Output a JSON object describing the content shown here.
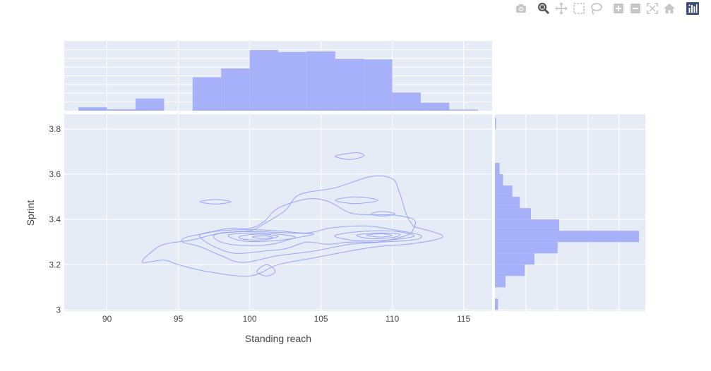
{
  "toolbar": {
    "buttons": [
      {
        "name": "camera-icon",
        "title": "Download plot as a png"
      },
      {
        "name": "zoom-icon",
        "title": "Zoom"
      },
      {
        "name": "pan-icon",
        "title": "Pan"
      },
      {
        "name": "box-select-icon",
        "title": "Box Select"
      },
      {
        "name": "lasso-select-icon",
        "title": "Lasso Select"
      },
      {
        "name": "zoom-in-icon",
        "title": "Zoom in"
      },
      {
        "name": "zoom-out-icon",
        "title": "Zoom out"
      },
      {
        "name": "autoscale-icon",
        "title": "Autoscale"
      },
      {
        "name": "reset-axes-icon",
        "title": "Reset axes"
      },
      {
        "name": "plotly-logo-icon",
        "title": "Produced with Plotly"
      }
    ],
    "active_button": "zoom-icon"
  },
  "colors": {
    "plot_bg": "#e5ecf6",
    "grid": "#ffffff",
    "bars": "#a3aefa",
    "contour": "#8f9cf8",
    "text": "#444444",
    "modebar_icon": "#c7c7c7",
    "modebar_active": "#555555",
    "plotly_logo": "#3f4f75"
  },
  "chart_data": {
    "type": "marginal-density-contour",
    "xlabel": "Standing reach",
    "ylabel": "Sprint",
    "x_ticks": [
      "90",
      "95",
      "100",
      "105",
      "110",
      "115"
    ],
    "y_ticks": [
      "3",
      "3.2",
      "3.4",
      "3.6",
      "3.8"
    ],
    "xlim": [
      87,
      117
    ],
    "ylim": [
      2.995,
      3.865
    ],
    "grid": true,
    "legend": "none",
    "marginal_x_histogram": {
      "bin_start": [
        88,
        90,
        92,
        96,
        98,
        100,
        102,
        104,
        106,
        108,
        110,
        112,
        114
      ],
      "bin_width": 2,
      "counts": [
        1,
        0.4,
        3.5,
        9.6,
        12.1,
        17.4,
        16.8,
        17.0,
        14.9,
        14.7,
        5.2,
        2.3,
        0.3
      ]
    },
    "marginal_y_histogram": {
      "bin_start": [
        3.0,
        3.1,
        3.15,
        3.2,
        3.25,
        3.3,
        3.35,
        3.4,
        3.45,
        3.5,
        3.55,
        3.6,
        3.8
      ],
      "bin_width": 0.05,
      "counts": [
        1,
        3.4,
        9.6,
        12.7,
        20.2,
        46.4,
        20.7,
        11.6,
        8.0,
        5.6,
        2.6,
        1.5,
        0.3
      ]
    },
    "contour_levels": [
      {
        "shapes": [
          [
            [
              93,
              3.25
            ],
            [
              94,
              3.29
            ],
            [
              96,
              3.31
            ],
            [
              98,
              3.34
            ],
            [
              100,
              3.35
            ],
            [
              101,
              3.38
            ],
            [
              102.5,
              3.44
            ],
            [
              103.5,
              3.51
            ],
            [
              106,
              3.54
            ],
            [
              108.5,
              3.59
            ],
            [
              110,
              3.58
            ],
            [
              110.5,
              3.52
            ],
            [
              111,
              3.42
            ],
            [
              111.5,
              3.37
            ],
            [
              112,
              3.36
            ],
            [
              113.5,
              3.33
            ],
            [
              113,
              3.31
            ],
            [
              111,
              3.29
            ],
            [
              109,
              3.28
            ],
            [
              107,
              3.26
            ],
            [
              104.5,
              3.23
            ],
            [
              102,
              3.2
            ],
            [
              100,
              3.15
            ],
            [
              97,
              3.17
            ],
            [
              95,
              3.2
            ],
            [
              94,
              3.22
            ],
            [
              92.5,
              3.21
            ],
            [
              93,
              3.25
            ]
          ],
          [
            [
              106,
              3.68
            ],
            [
              107.5,
              3.695
            ],
            [
              108,
              3.68
            ],
            [
              107,
              3.665
            ],
            [
              106,
              3.68
            ]
          ],
          [
            [
              96.5,
              3.478
            ],
            [
              97.6,
              3.488
            ],
            [
              98.7,
              3.478
            ],
            [
              97.6,
              3.468
            ],
            [
              96.5,
              3.478
            ]
          ]
        ]
      },
      {
        "shapes": [
          [
            [
              95.5,
              3.32
            ],
            [
              97,
              3.34
            ],
            [
              98.5,
              3.36
            ],
            [
              100,
              3.36
            ],
            [
              101,
              3.39
            ],
            [
              102,
              3.45
            ],
            [
              104,
              3.49
            ],
            [
              105.5,
              3.48
            ],
            [
              107,
              3.43
            ],
            [
              108.5,
              3.42
            ],
            [
              110,
              3.42
            ],
            [
              111.5,
              3.4
            ],
            [
              111.5,
              3.36
            ],
            [
              111,
              3.33
            ],
            [
              109,
              3.3
            ],
            [
              107,
              3.29
            ],
            [
              104.5,
              3.26
            ],
            [
              102,
              3.24
            ],
            [
              99.5,
              3.21
            ],
            [
              98,
              3.24
            ],
            [
              96.5,
              3.28
            ],
            [
              95.3,
              3.3
            ],
            [
              95.5,
              3.32
            ]
          ],
          [
            [
              106,
              3.485
            ],
            [
              107.4,
              3.5
            ],
            [
              109,
              3.485
            ],
            [
              107.4,
              3.47
            ],
            [
              106,
              3.485
            ]
          ],
          [
            [
              100.5,
              3.17
            ],
            [
              101.2,
              3.2
            ],
            [
              101.8,
              3.17
            ],
            [
              101.2,
              3.15
            ],
            [
              100.5,
              3.17
            ]
          ]
        ]
      },
      {
        "shapes": [
          [
            [
              96.5,
              3.33
            ],
            [
              98,
              3.35
            ],
            [
              100,
              3.355
            ],
            [
              102,
              3.35
            ],
            [
              104,
              3.34
            ],
            [
              105.5,
              3.36
            ],
            [
              107,
              3.37
            ],
            [
              108.5,
              3.37
            ],
            [
              110.5,
              3.35
            ],
            [
              112,
              3.33
            ],
            [
              111.5,
              3.31
            ],
            [
              109,
              3.3
            ],
            [
              107,
              3.3
            ],
            [
              105.5,
              3.29
            ],
            [
              104,
              3.3
            ],
            [
              102.5,
              3.27
            ],
            [
              101,
              3.26
            ],
            [
              99,
              3.25
            ],
            [
              97.5,
              3.28
            ],
            [
              96.5,
              3.33
            ]
          ],
          [
            [
              108.5,
              3.425
            ],
            [
              109.3,
              3.435
            ],
            [
              110.2,
              3.425
            ],
            [
              109.3,
              3.415
            ],
            [
              108.5,
              3.425
            ]
          ]
        ]
      },
      {
        "shapes": [
          [
            [
              97.5,
              3.33
            ],
            [
              99,
              3.345
            ],
            [
              101,
              3.345
            ],
            [
              103,
              3.34
            ],
            [
              104.5,
              3.335
            ],
            [
              103,
              3.315
            ],
            [
              101.5,
              3.29
            ],
            [
              99.5,
              3.285
            ],
            [
              98,
              3.3
            ],
            [
              97.5,
              3.33
            ]
          ],
          [
            [
              106,
              3.33
            ],
            [
              107.5,
              3.345
            ],
            [
              109.5,
              3.35
            ],
            [
              111,
              3.34
            ],
            [
              111.5,
              3.325
            ],
            [
              110,
              3.31
            ],
            [
              108,
              3.305
            ],
            [
              106.5,
              3.315
            ],
            [
              106,
              3.33
            ]
          ]
        ]
      },
      {
        "shapes": [
          [
            [
              98.5,
              3.33
            ],
            [
              100,
              3.34
            ],
            [
              102,
              3.335
            ],
            [
              103.2,
              3.32
            ],
            [
              101.5,
              3.305
            ],
            [
              99.5,
              3.305
            ],
            [
              98.5,
              3.33
            ]
          ],
          [
            [
              107.5,
              3.33
            ],
            [
              109,
              3.34
            ],
            [
              110.5,
              3.335
            ],
            [
              110,
              3.32
            ],
            [
              108.5,
              3.315
            ],
            [
              107.5,
              3.33
            ]
          ]
        ]
      },
      {
        "shapes": [
          [
            [
              99.3,
              3.325
            ],
            [
              100.5,
              3.335
            ],
            [
              102,
              3.327
            ],
            [
              101,
              3.31
            ],
            [
              99.6,
              3.312
            ],
            [
              99.3,
              3.325
            ]
          ],
          [
            [
              108.2,
              3.33
            ],
            [
              109.2,
              3.337
            ],
            [
              110,
              3.33
            ],
            [
              109.2,
              3.322
            ],
            [
              108.2,
              3.33
            ]
          ]
        ]
      },
      {
        "shapes": [
          [
            [
              100.2,
              3.323
            ],
            [
              101,
              3.328
            ],
            [
              101.6,
              3.321
            ],
            [
              100.8,
              3.316
            ],
            [
              100.2,
              3.323
            ]
          ]
        ]
      }
    ]
  }
}
